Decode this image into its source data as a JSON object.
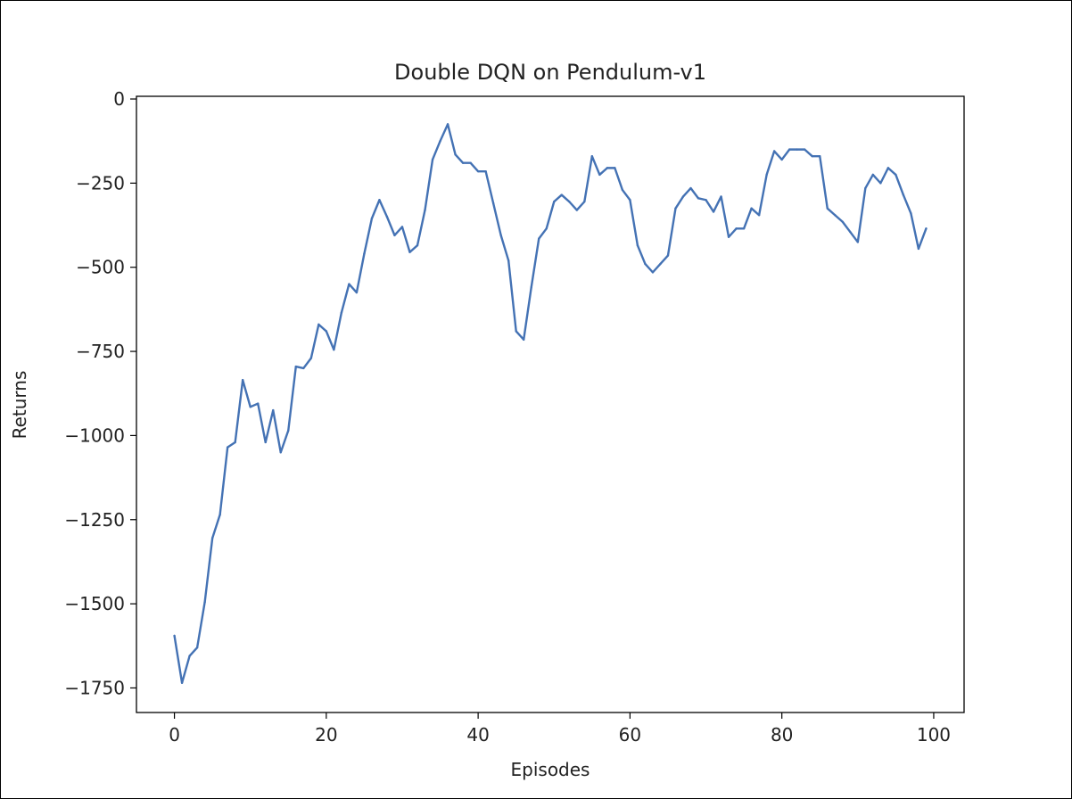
{
  "chart_data": {
    "type": "line",
    "title": "Double DQN on Pendulum-v1",
    "xlabel": "Episodes",
    "ylabel": "Returns",
    "xlim": [
      -5,
      104
    ],
    "ylim": [
      -1823,
      8
    ],
    "xticks": [
      0,
      20,
      40,
      60,
      80,
      100
    ],
    "xtick_labels": [
      "0",
      "20",
      "40",
      "60",
      "80",
      "100"
    ],
    "yticks": [
      0,
      -250,
      -500,
      -750,
      -1000,
      -1250,
      -1500,
      -1750
    ],
    "ytick_labels": [
      "0",
      "−250",
      "−500",
      "−750",
      "−1000",
      "−1250",
      "−1500",
      "−1750"
    ],
    "grid": false,
    "line_color": "#4472b4",
    "series": [
      {
        "x": [
          0,
          1,
          2,
          3,
          4,
          5,
          6,
          7,
          8,
          9,
          10,
          11,
          12,
          13,
          14,
          15,
          16,
          17,
          18,
          19,
          20,
          21,
          22,
          23,
          24,
          25,
          26,
          27,
          28,
          29,
          30,
          31,
          32,
          33,
          34,
          35,
          36,
          37,
          38,
          39,
          40,
          41,
          42,
          43,
          44,
          45,
          46,
          47,
          48,
          49,
          50,
          51,
          52,
          53,
          54,
          55,
          56,
          57,
          58,
          59,
          60,
          61,
          62,
          63,
          64,
          65,
          66,
          67,
          68,
          69,
          70,
          71,
          72,
          73,
          74,
          75,
          76,
          77,
          78,
          79,
          80,
          81,
          82,
          83,
          84,
          85,
          86,
          87,
          88,
          89,
          90,
          91,
          92,
          93,
          94,
          95,
          96,
          97,
          98,
          99
        ],
        "values": [
          -1595,
          -1735,
          -1655,
          -1630,
          -1495,
          -1305,
          -1235,
          -1035,
          -1020,
          -835,
          -915,
          -905,
          -1020,
          -925,
          -1050,
          -985,
          -795,
          -800,
          -770,
          -670,
          -690,
          -745,
          -635,
          -550,
          -575,
          -460,
          -355,
          -300,
          -350,
          -405,
          -380,
          -455,
          -435,
          -330,
          -180,
          -125,
          -75,
          -165,
          -190,
          -190,
          -215,
          -215,
          -310,
          -405,
          -480,
          -690,
          -715,
          -560,
          -415,
          -385,
          -305,
          -285,
          -305,
          -330,
          -305,
          -170,
          -225,
          -205,
          -205,
          -270,
          -300,
          -435,
          -490,
          -515,
          -490,
          -465,
          -325,
          -290,
          -265,
          -295,
          -300,
          -335,
          -290,
          -410,
          -385,
          -385,
          -325,
          -345,
          -225,
          -155,
          -180,
          -150,
          -150,
          -150,
          -170,
          -170,
          -325,
          -345,
          -365,
          -395,
          -425,
          -265,
          -225,
          -250,
          -205,
          -225,
          -285,
          -340,
          -445,
          -385
        ]
      }
    ]
  }
}
